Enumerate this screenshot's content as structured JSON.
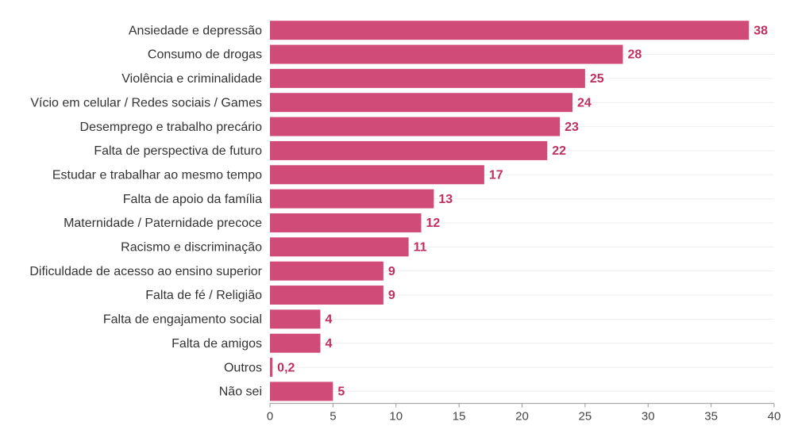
{
  "chart_data": {
    "type": "bar",
    "orientation": "horizontal",
    "categories": [
      "Ansiedade e depressão",
      "Consumo de drogas",
      "Violência e criminalidade",
      "Vício em celular / Redes sociais / Games",
      "Desemprego e trabalho precário",
      "Falta de perspectiva de futuro",
      "Estudar e trabalhar ao mesmo tempo",
      "Falta de apoio da família",
      "Maternidade / Paternidade precoce",
      "Racismo e discriminação",
      "Dificuldade de acesso ao ensino superior",
      "Falta de fé / Religião",
      "Falta de engajamento social",
      "Falta de amigos",
      "Outros",
      "Não sei"
    ],
    "values": [
      38,
      28,
      25,
      24,
      23,
      22,
      17,
      13,
      12,
      11,
      9,
      9,
      4,
      4,
      0.2,
      5
    ],
    "value_labels": [
      "38",
      "28",
      "25",
      "24",
      "23",
      "22",
      "17",
      "13",
      "12",
      "11",
      "9",
      "9",
      "4",
      "4",
      "0,2",
      "5"
    ],
    "color": "#d14b78",
    "xlim": [
      0,
      40
    ],
    "xticks": [
      0,
      5,
      10,
      15,
      20,
      25,
      30,
      35,
      40
    ]
  }
}
